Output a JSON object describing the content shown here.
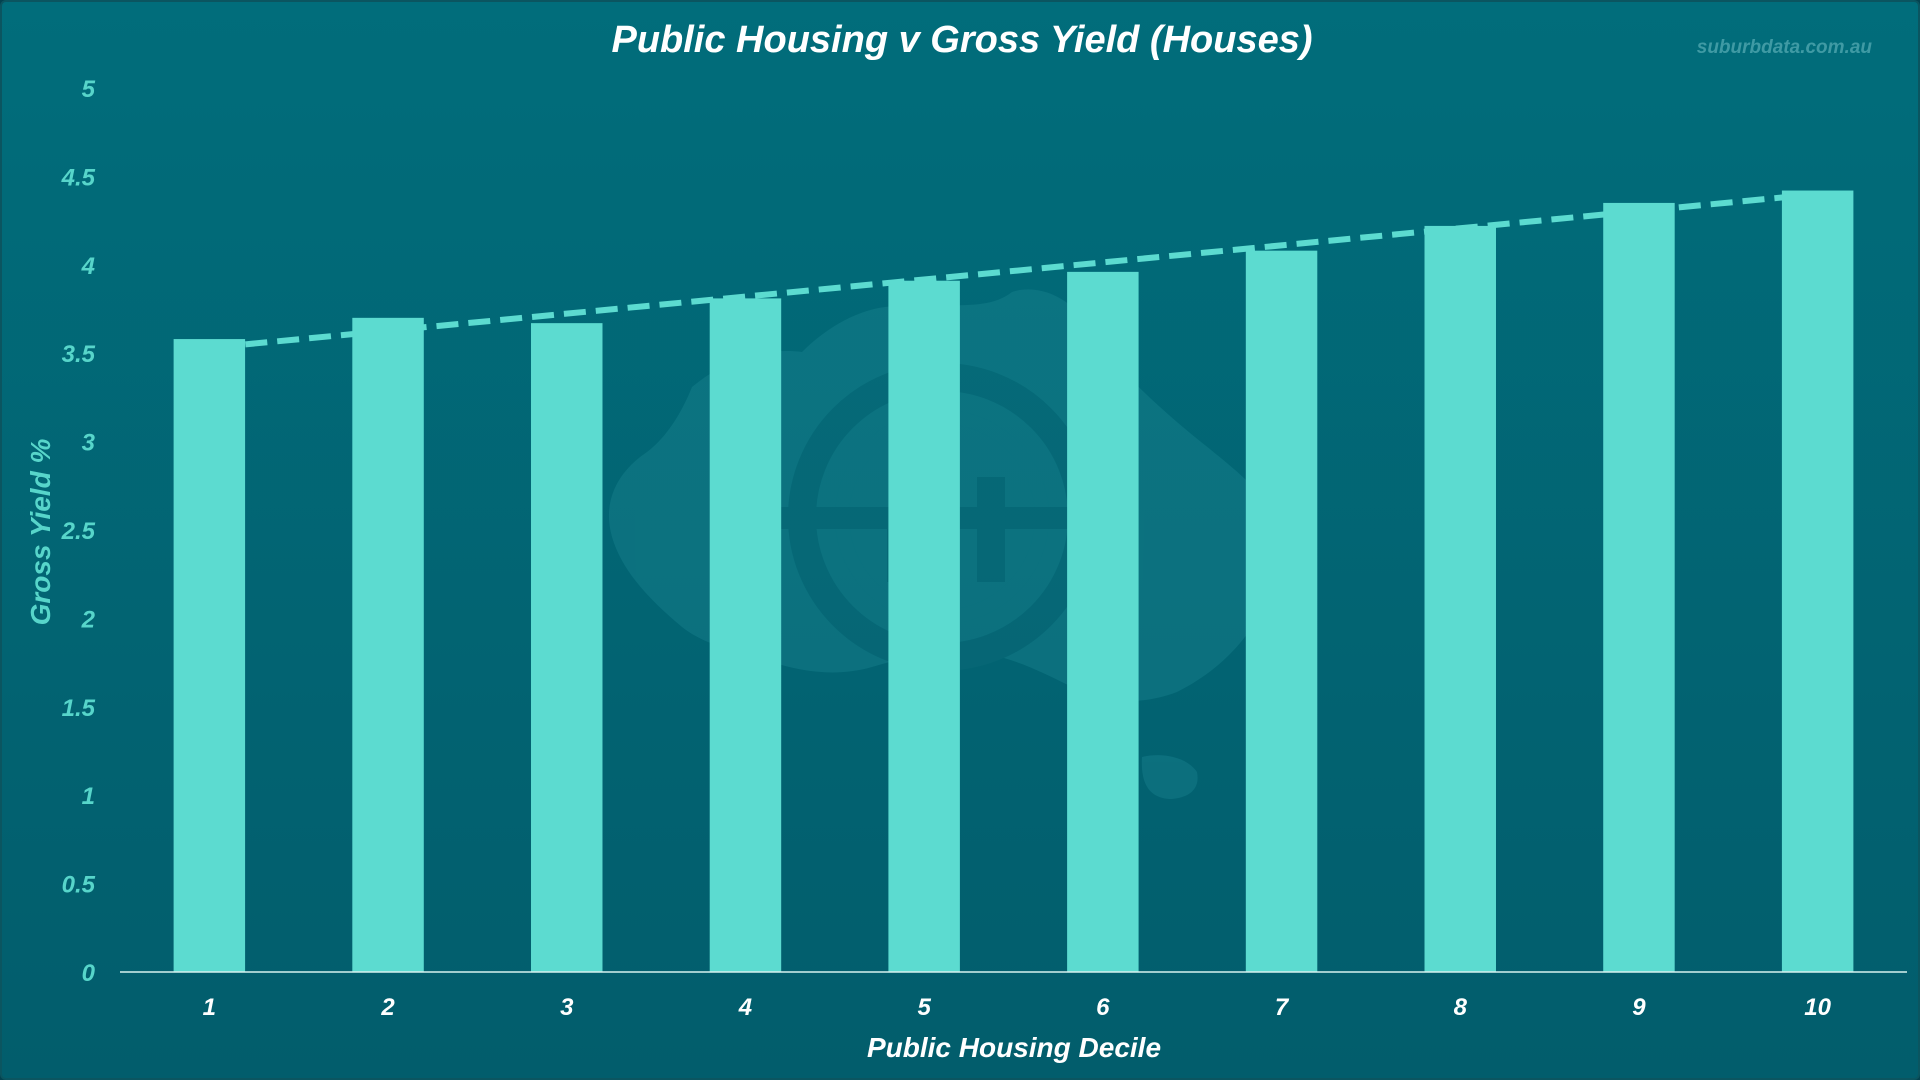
{
  "watermark": "suburbdata.com.au",
  "colors": {
    "background": "#026674",
    "bar": "#5cdbd0",
    "trendline": "#5cdbd0",
    "y_tick": "#57d5ca",
    "x_tick": "#ffffff",
    "title": "#ffffff"
  },
  "chart_data": {
    "type": "bar",
    "title": "Public Housing v Gross Yield (Houses)",
    "xlabel": "Public Housing Decile",
    "ylabel": "Gross Yield %",
    "categories": [
      "1",
      "2",
      "3",
      "4",
      "5",
      "6",
      "7",
      "8",
      "9",
      "10"
    ],
    "values": [
      3.58,
      3.7,
      3.67,
      3.81,
      3.91,
      3.96,
      4.08,
      4.22,
      4.35,
      4.42
    ],
    "ylim": [
      0,
      5
    ],
    "yticks": [
      "0",
      "0.5",
      "1",
      "1.5",
      "2",
      "2.5",
      "3",
      "3.5",
      "4",
      "4.5",
      "5"
    ],
    "trendline": {
      "type": "linear",
      "style": "dashed",
      "start": 3.55,
      "end": 4.4
    },
    "grid": false,
    "legend": "none"
  }
}
